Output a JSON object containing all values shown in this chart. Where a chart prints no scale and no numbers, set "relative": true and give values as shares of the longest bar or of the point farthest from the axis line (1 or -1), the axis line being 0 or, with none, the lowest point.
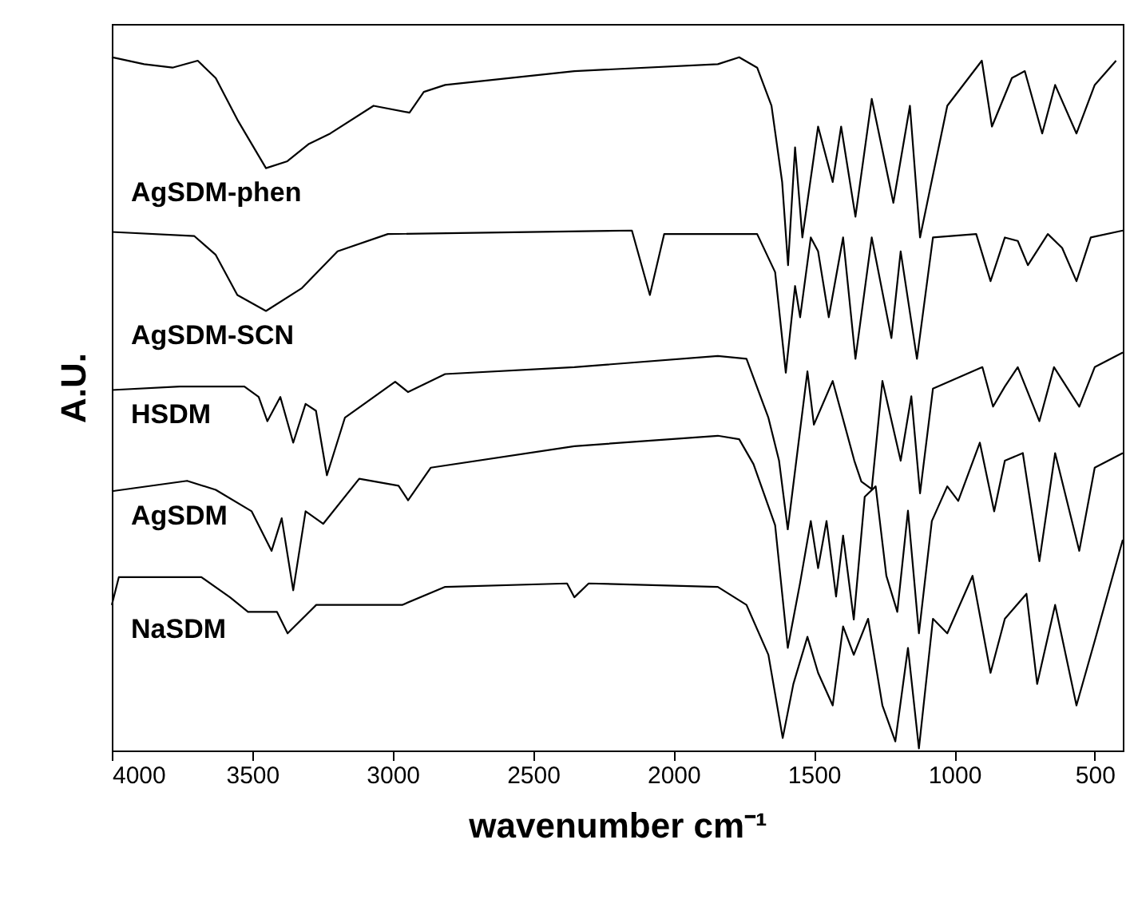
{
  "chart_data": {
    "type": "line",
    "xlabel": "wavenumber cm⁻¹",
    "ylabel": "A.U.",
    "relative": true,
    "tick_labels": "x",
    "grid": false,
    "marker": "none",
    "line_style": "solid",
    "xlim": [
      4000,
      400
    ],
    "xticks": [
      4000,
      3500,
      3000,
      2500,
      2000,
      1500,
      1000,
      500
    ],
    "series": [
      {
        "name": "AgSDM-phen",
        "color": "#000000",
        "x": [
          4000,
          3885,
          3784,
          3694,
          3630,
          3553,
          3451,
          3375,
          3298,
          3222,
          3068,
          2940,
          2889,
          2813,
          2353,
          1842,
          1766,
          1702,
          1651,
          1613,
          1592,
          1567,
          1541,
          1485,
          1433,
          1403,
          1352,
          1294,
          1217,
          1158,
          1122,
          1076,
          1025,
          902,
          866,
          795,
          749,
          687,
          641,
          565,
          500,
          424
        ],
        "values": [
          1.0,
          0.99,
          0.985,
          0.995,
          0.97,
          0.91,
          0.84,
          0.85,
          0.875,
          0.89,
          0.93,
          0.92,
          0.95,
          0.96,
          0.98,
          0.99,
          1.0,
          0.985,
          0.93,
          0.82,
          0.7,
          0.87,
          0.74,
          0.9,
          0.82,
          0.9,
          0.77,
          0.94,
          0.79,
          0.93,
          0.74,
          0.83,
          0.93,
          0.995,
          0.9,
          0.97,
          0.98,
          0.89,
          0.96,
          0.89,
          0.96,
          0.995
        ]
      },
      {
        "name": "AgSDM-SCN",
        "color": "#000000",
        "x": [
          4000,
          3706,
          3630,
          3553,
          3451,
          3323,
          3196,
          3017,
          2148,
          2084,
          2033,
          1702,
          1638,
          1600,
          1567,
          1549,
          1511,
          1485,
          1447,
          1396,
          1352,
          1294,
          1224,
          1191,
          1133,
          1076,
          922,
          871,
          820,
          774,
          738,
          667,
          616,
          565,
          514,
          400
        ],
        "values": [
          0.748,
          0.742,
          0.715,
          0.657,
          0.634,
          0.667,
          0.72,
          0.745,
          0.75,
          0.657,
          0.745,
          0.745,
          0.69,
          0.545,
          0.67,
          0.625,
          0.74,
          0.72,
          0.625,
          0.74,
          0.565,
          0.74,
          0.595,
          0.72,
          0.565,
          0.74,
          0.745,
          0.677,
          0.74,
          0.735,
          0.7,
          0.745,
          0.725,
          0.677,
          0.74,
          0.75
        ]
      },
      {
        "name": "HSDM",
        "color": "#000000",
        "x": [
          4000,
          3758,
          3528,
          3477,
          3446,
          3400,
          3354,
          3310,
          3273,
          3234,
          3170,
          2991,
          2945,
          2813,
          2353,
          1842,
          1740,
          1662,
          1624,
          1593,
          1523,
          1500,
          1433,
          1356,
          1331,
          1294,
          1256,
          1191,
          1153,
          1122,
          1076,
          900,
          862,
          820,
          774,
          697,
          645,
          555,
          500,
          400
        ],
        "values": [
          0.52,
          0.525,
          0.525,
          0.51,
          0.475,
          0.51,
          0.444,
          0.5,
          0.49,
          0.397,
          0.48,
          0.532,
          0.517,
          0.543,
          0.553,
          0.569,
          0.565,
          0.48,
          0.418,
          0.319,
          0.547,
          0.47,
          0.533,
          0.418,
          0.388,
          0.377,
          0.533,
          0.418,
          0.511,
          0.371,
          0.522,
          0.553,
          0.496,
          0.525,
          0.553,
          0.475,
          0.553,
          0.496,
          0.553,
          0.574
        ]
      },
      {
        "name": "AgSDM",
        "color": "#000000",
        "x": [
          4000,
          3732,
          3630,
          3502,
          3431,
          3395,
          3354,
          3310,
          3247,
          3119,
          2979,
          2945,
          2864,
          2353,
          1842,
          1766,
          1715,
          1638,
          1593,
          1549,
          1511,
          1485,
          1455,
          1421,
          1396,
          1358,
          1319,
          1280,
          1242,
          1203,
          1165,
          1126,
          1080,
          1025,
          986,
          909,
          858,
          820,
          756,
          697,
          641,
          555,
          500,
          400
        ],
        "values": [
          0.374,
          0.389,
          0.376,
          0.345,
          0.288,
          0.335,
          0.231,
          0.345,
          0.327,
          0.392,
          0.382,
          0.361,
          0.408,
          0.439,
          0.454,
          0.449,
          0.413,
          0.325,
          0.148,
          0.242,
          0.331,
          0.263,
          0.331,
          0.222,
          0.31,
          0.189,
          0.366,
          0.381,
          0.252,
          0.2,
          0.346,
          0.169,
          0.331,
          0.381,
          0.36,
          0.444,
          0.345,
          0.418,
          0.429,
          0.273,
          0.429,
          0.288,
          0.408,
          0.429
        ]
      },
      {
        "name": "NaSDM",
        "color": "#000000",
        "x": [
          4000,
          3975,
          3681,
          3579,
          3515,
          3412,
          3374,
          3272,
          2966,
          2813,
          2379,
          2353,
          2302,
          1842,
          1740,
          1662,
          1611,
          1573,
          1523,
          1485,
          1433,
          1396,
          1358,
          1307,
          1256,
          1210,
          1165,
          1126,
          1076,
          1025,
          935,
          871,
          820,
          743,
          705,
          641,
          565,
          500,
          400
        ],
        "values": [
          0.21,
          0.25,
          0.25,
          0.221,
          0.2,
          0.2,
          0.169,
          0.21,
          0.21,
          0.236,
          0.241,
          0.221,
          0.241,
          0.236,
          0.21,
          0.138,
          0.018,
          0.096,
          0.164,
          0.112,
          0.065,
          0.179,
          0.138,
          0.19,
          0.065,
          0.013,
          0.148,
          0.003,
          0.19,
          0.169,
          0.252,
          0.112,
          0.19,
          0.226,
          0.096,
          0.21,
          0.065,
          0.158,
          0.304
        ]
      }
    ]
  }
}
